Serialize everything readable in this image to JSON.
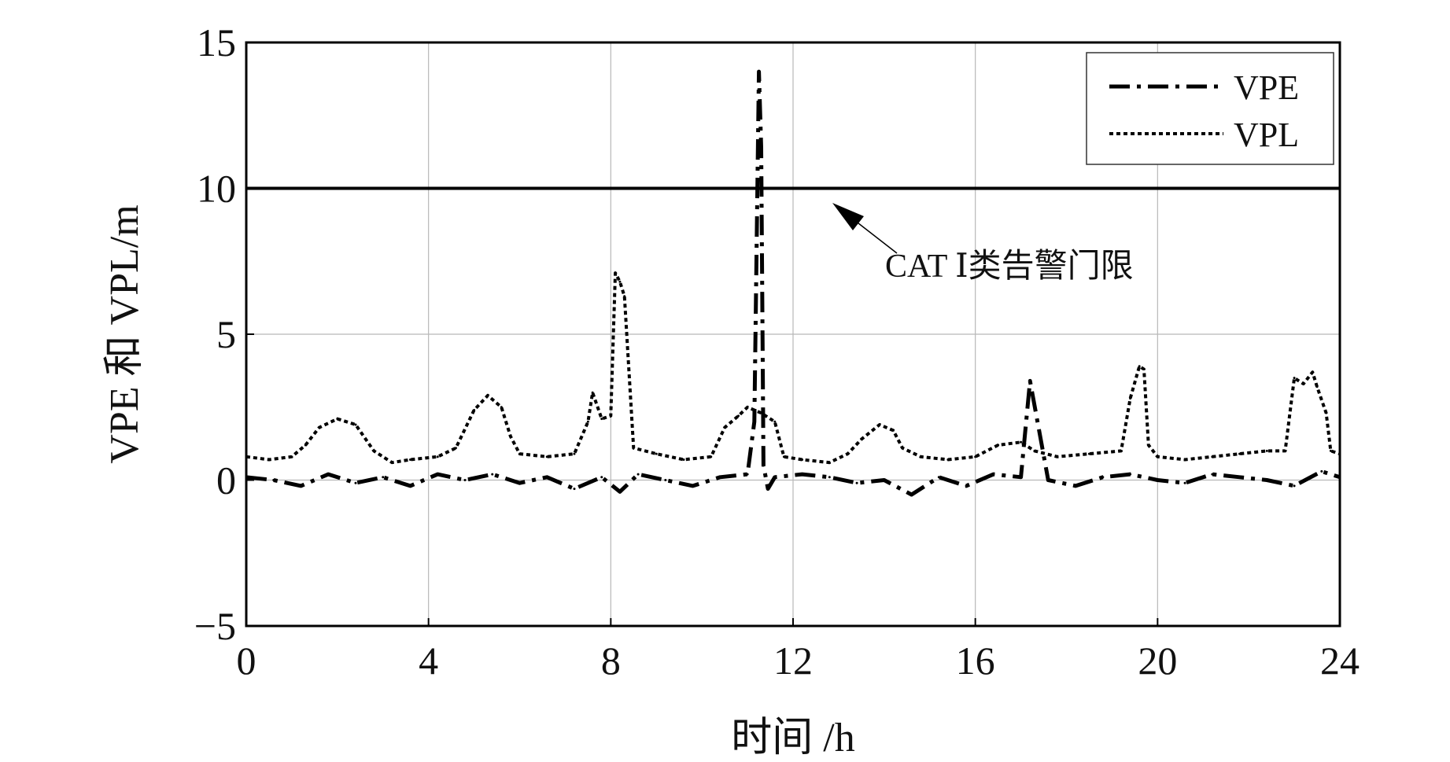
{
  "chart_data": {
    "type": "line",
    "xlabel": "时间 /h",
    "ylabel": "VPE 和 VPL/m",
    "xlim": [
      0,
      24
    ],
    "ylim": [
      -5,
      15
    ],
    "x_ticks": [
      0,
      4,
      8,
      12,
      16,
      20,
      24
    ],
    "y_ticks": [
      -5,
      0,
      5,
      10,
      15
    ],
    "y_tick_labels": [
      "−5",
      "0",
      "5",
      "10",
      "15"
    ],
    "grid": true,
    "legend": {
      "position": "top-right",
      "entries": [
        "VPE",
        "VPL"
      ]
    },
    "threshold": {
      "y": 10,
      "label": "CAT Ⅰ类告警门限"
    },
    "series": [
      {
        "name": "VPE",
        "style": "dash-dot",
        "color": "#000000",
        "x": [
          0,
          0.6,
          1.2,
          1.8,
          2.4,
          3.0,
          3.6,
          4.2,
          4.8,
          5.4,
          6.0,
          6.6,
          7.2,
          7.8,
          8.2,
          8.6,
          9.2,
          9.8,
          10.4,
          11.0,
          11.15,
          11.25,
          11.3,
          11.35,
          11.45,
          11.6,
          12.2,
          12.8,
          13.4,
          14.0,
          14.6,
          15.2,
          15.8,
          16.4,
          17.0,
          17.2,
          17.6,
          18.2,
          18.8,
          19.4,
          20.0,
          20.6,
          21.2,
          21.8,
          22.4,
          23.0,
          23.6,
          24
        ],
        "y": [
          0.1,
          0.0,
          -0.2,
          0.2,
          -0.1,
          0.1,
          -0.2,
          0.2,
          0.0,
          0.2,
          -0.1,
          0.1,
          -0.3,
          0.1,
          -0.4,
          0.2,
          0.0,
          -0.2,
          0.1,
          0.2,
          2.0,
          14.0,
          11.4,
          0.5,
          -0.3,
          0.1,
          0.2,
          0.1,
          -0.1,
          0.0,
          -0.5,
          0.1,
          -0.2,
          0.2,
          0.1,
          3.4,
          0.0,
          -0.2,
          0.1,
          0.2,
          0.0,
          -0.1,
          0.2,
          0.1,
          0.0,
          -0.2,
          0.3,
          0.1
        ]
      },
      {
        "name": "VPL",
        "style": "dotted",
        "color": "#000000",
        "x": [
          0,
          0.5,
          1.0,
          1.3,
          1.6,
          2.0,
          2.4,
          2.8,
          3.2,
          3.6,
          4.2,
          4.6,
          5.0,
          5.3,
          5.6,
          5.8,
          6.0,
          6.6,
          7.2,
          7.5,
          7.6,
          7.8,
          8.0,
          8.1,
          8.2,
          8.3,
          8.5,
          9.0,
          9.6,
          10.2,
          10.5,
          10.8,
          11.0,
          11.3,
          11.6,
          11.8,
          12.2,
          12.8,
          13.2,
          13.5,
          13.9,
          14.2,
          14.4,
          14.8,
          15.4,
          16.0,
          16.5,
          17.0,
          17.3,
          17.8,
          18.5,
          19.2,
          19.4,
          19.6,
          19.7,
          19.8,
          20.0,
          20.6,
          21.2,
          21.8,
          22.4,
          22.8,
          23.0,
          23.2,
          23.4,
          23.5,
          23.7,
          23.8,
          24
        ],
        "y": [
          0.8,
          0.7,
          0.8,
          1.2,
          1.8,
          2.1,
          1.9,
          1.0,
          0.6,
          0.7,
          0.8,
          1.1,
          2.4,
          2.9,
          2.5,
          1.5,
          0.9,
          0.8,
          0.9,
          2.0,
          3.0,
          2.1,
          2.2,
          7.1,
          6.8,
          6.3,
          1.1,
          0.9,
          0.7,
          0.8,
          1.8,
          2.2,
          2.5,
          2.3,
          2.0,
          0.8,
          0.7,
          0.6,
          0.9,
          1.4,
          1.9,
          1.7,
          1.1,
          0.8,
          0.7,
          0.8,
          1.2,
          1.3,
          1.0,
          0.8,
          0.9,
          1.0,
          2.8,
          3.9,
          3.8,
          1.2,
          0.8,
          0.7,
          0.8,
          0.9,
          1.0,
          1.0,
          3.5,
          3.3,
          3.7,
          3.2,
          2.3,
          1.0,
          0.9
        ]
      }
    ]
  }
}
